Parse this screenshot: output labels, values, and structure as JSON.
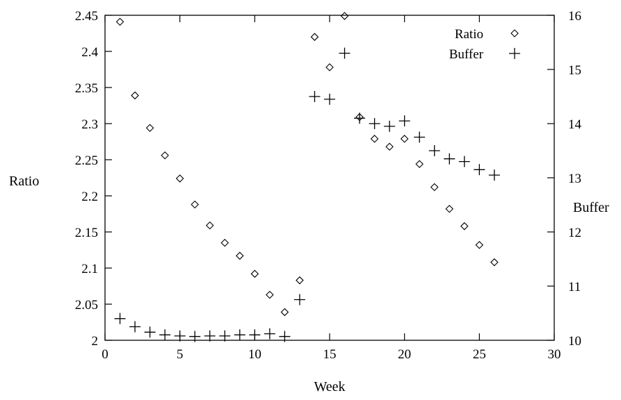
{
  "chart_data": {
    "type": "scatter",
    "xlabel": "Week",
    "ylabel": "Ratio",
    "y2label": "Buffer",
    "xlim": [
      0,
      30
    ],
    "ylim": [
      2,
      2.45
    ],
    "y2lim": [
      10,
      16
    ],
    "x_ticks": [
      "0",
      "5",
      "10",
      "15",
      "20",
      "25",
      "30"
    ],
    "y_ticks": [
      "2",
      "2.05",
      "2.1",
      "2.15",
      "2.2",
      "2.25",
      "2.3",
      "2.35",
      "2.4",
      "2.45"
    ],
    "y2_ticks": [
      "10",
      "11",
      "12",
      "13",
      "14",
      "15",
      "16"
    ],
    "grid": false,
    "legend_position": "top-right",
    "series": [
      {
        "name": "Ratio",
        "axis": "left",
        "marker": "diamond",
        "x": [
          1,
          2,
          3,
          4,
          5,
          6,
          7,
          8,
          9,
          10,
          11,
          12,
          13,
          14,
          15,
          16,
          17,
          18,
          19,
          20,
          21,
          22,
          23,
          24,
          25,
          26
        ],
        "y": [
          2.441,
          2.339,
          2.294,
          2.256,
          2.224,
          2.188,
          2.159,
          2.135,
          2.117,
          2.092,
          2.063,
          2.039,
          2.083,
          2.42,
          2.378,
          2.449,
          2.309,
          2.279,
          2.268,
          2.279,
          2.244,
          2.212,
          2.182,
          2.158,
          2.132,
          2.108
        ]
      },
      {
        "name": "Buffer",
        "axis": "right",
        "marker": "plus",
        "x": [
          1,
          2,
          3,
          4,
          5,
          6,
          7,
          8,
          9,
          10,
          11,
          12,
          13,
          14,
          15,
          16,
          17,
          18,
          19,
          20,
          21,
          22,
          23,
          24,
          25,
          26
        ],
        "y": [
          10.4,
          10.25,
          10.15,
          10.1,
          10.08,
          10.07,
          10.08,
          10.08,
          10.1,
          10.1,
          10.12,
          10.07,
          10.75,
          14.5,
          14.45,
          15.3,
          14.1,
          14.0,
          13.95,
          14.05,
          13.75,
          13.5,
          13.35,
          13.3,
          13.15,
          13.05
        ]
      }
    ]
  }
}
